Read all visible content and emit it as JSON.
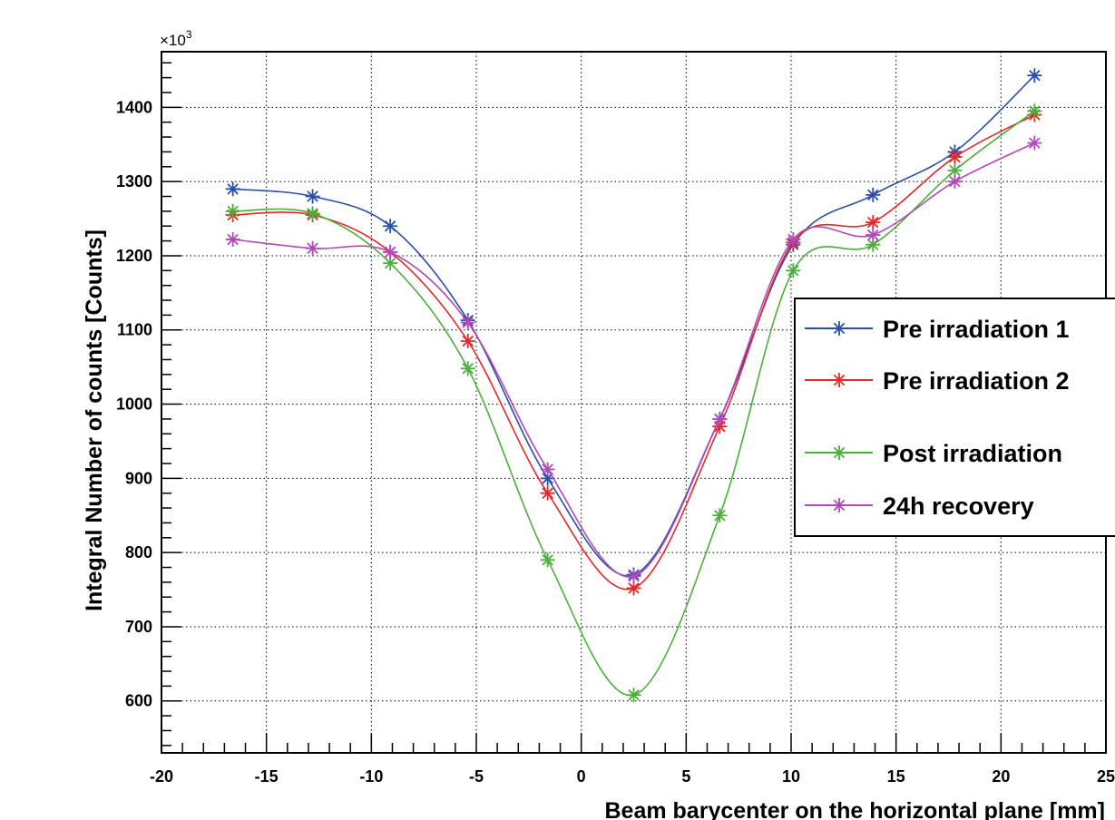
{
  "chart_data": {
    "type": "line",
    "xlabel": "Beam barycenter on the horizontal plane [mm]",
    "ylabel": "Integral Number of counts [Counts]",
    "y_multiplier_label": "×10",
    "y_multiplier_exponent": "3",
    "xlim": [
      -20,
      25
    ],
    "ylim": [
      530,
      1475
    ],
    "x_ticks": [
      -20,
      -15,
      -10,
      -5,
      0,
      5,
      10,
      15,
      20,
      25
    ],
    "x_tick_labels": [
      "-20",
      "-15",
      "-10",
      "-5",
      "0",
      "5",
      "10",
      "15",
      "20",
      "25"
    ],
    "y_ticks": [
      600,
      700,
      800,
      900,
      1000,
      1100,
      1200,
      1300,
      1400
    ],
    "y_tick_labels": [
      "600",
      "700",
      "800",
      "900",
      "1000",
      "1100",
      "1200",
      "1300",
      "1400"
    ],
    "grid": true,
    "legend_position": "right",
    "marker": "asterisk",
    "x": [
      -16.6,
      -12.8,
      -9.1,
      -5.4,
      -1.6,
      2.5,
      6.6,
      10.1,
      13.9,
      17.8,
      21.6
    ],
    "series": [
      {
        "name": "Pre irradiation 1",
        "color": "#2a4fa8",
        "values": [
          1290,
          1280,
          1240,
          1113,
          900,
          770,
          980,
          1215,
          1282,
          1340,
          1443
        ]
      },
      {
        "name": "Pre irradiation 2",
        "color": "#e8272a",
        "values": [
          1255,
          1255,
          1205,
          1085,
          880,
          752,
          970,
          1218,
          1245,
          1333,
          1390
        ]
      },
      {
        "name": "Post irradiation",
        "color": "#4caf3c",
        "values": [
          1260,
          1257,
          1190,
          1048,
          790,
          608,
          850,
          1180,
          1215,
          1315,
          1395
        ]
      },
      {
        "name": "24h recovery",
        "color": "#b249b8",
        "values": [
          1222,
          1210,
          1205,
          1110,
          912,
          768,
          980,
          1222,
          1228,
          1300,
          1352
        ]
      }
    ]
  }
}
